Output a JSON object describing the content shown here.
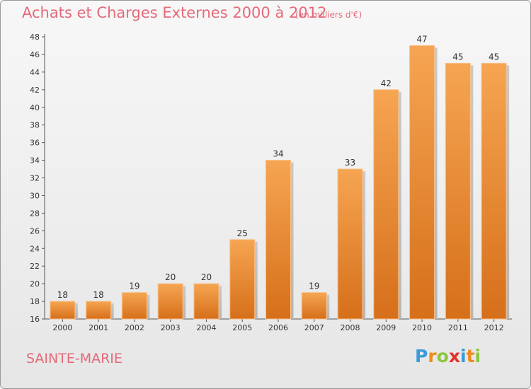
{
  "title": "Achats et Charges Externes 2000 à 2012",
  "subtitle": "(en milliers d'€)",
  "commune": "SAINTE-MARIE",
  "logo": {
    "letters": [
      "P",
      "r",
      "o",
      "x",
      "i",
      "t",
      "i"
    ],
    "colors": [
      "#3a9ad9",
      "#f08a1c",
      "#8cc63f",
      "#e5312b",
      "#3a9ad9",
      "#f08a1c",
      "#8cc63f"
    ]
  },
  "colors": {
    "bar_top": "#f6a552",
    "bar_bottom": "#d66f1a",
    "text": "#e46a7a"
  },
  "chart_data": {
    "type": "bar",
    "title": "Achats et Charges Externes 2000 à 2012",
    "subtitle": "(en milliers d'€)",
    "categories": [
      "2000",
      "2001",
      "2002",
      "2003",
      "2004",
      "2005",
      "2006",
      "2007",
      "2008",
      "2009",
      "2010",
      "2011",
      "2012"
    ],
    "values": [
      18,
      18,
      19,
      20,
      20,
      25,
      34,
      19,
      33,
      42,
      47,
      45,
      45
    ],
    "ylim": [
      16,
      48
    ],
    "yticks": [
      16,
      18,
      20,
      22,
      24,
      26,
      28,
      30,
      32,
      34,
      36,
      38,
      40,
      42,
      44,
      46,
      48
    ],
    "grid": false,
    "xlabel": "",
    "ylabel": ""
  }
}
